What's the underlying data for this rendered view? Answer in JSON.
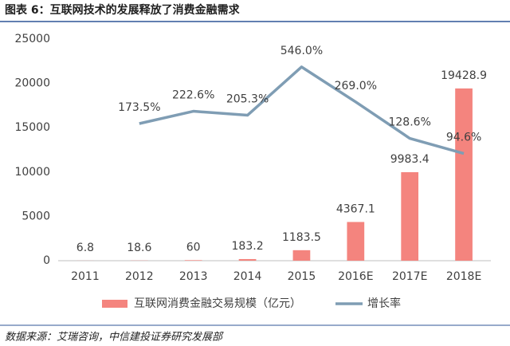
{
  "chart_data": {
    "type": "bar",
    "title": "图表 6：互联网技术的发展释放了消费金融需求",
    "source": "数据来源：艾瑞咨询，中信建投证券研究发展部",
    "categories": [
      "2011",
      "2012",
      "2013",
      "2014",
      "2015",
      "2016E",
      "2017E",
      "2018E"
    ],
    "series": [
      {
        "name": "互联网消费金融交易规模（亿元）",
        "type": "bar",
        "color": "#f4847e",
        "values": [
          6.8,
          18.6,
          60,
          183.2,
          1183.5,
          4367.1,
          9983.4,
          19428.9
        ]
      },
      {
        "name": "增长率",
        "type": "line",
        "axis": "y2",
        "color": "#7f9db4",
        "values": [
          null,
          173.5,
          222.6,
          205.3,
          546.0,
          269.0,
          128.6,
          94.6
        ],
        "value_labels": [
          null,
          "173.5%",
          "222.6%",
          "205.3%",
          "546.0%",
          "269.0%",
          "128.6%",
          "94.6%"
        ]
      }
    ],
    "ylim": [
      0,
      25000
    ],
    "yticks": [
      0,
      5000,
      10000,
      15000,
      20000,
      25000
    ],
    "y2lim": [
      10.8,
      960
    ],
    "y2log": true,
    "grid": false,
    "legend": "bottom"
  }
}
